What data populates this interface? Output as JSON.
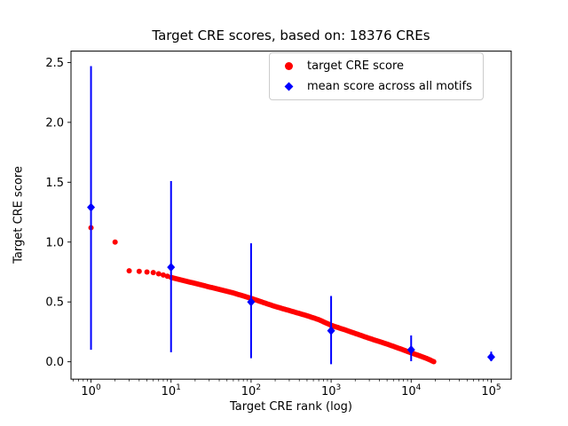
{
  "figure": {
    "background": "#ffffff"
  },
  "chart_data": {
    "type": "scatter",
    "title": "Target CRE scores, based on: 18376 CREs",
    "xlabel": "Target CRE rank (log)",
    "ylabel": "Target CRE score",
    "x_scale": "log",
    "grid": false,
    "x_range_log10": [
      -0.25,
      5.25
    ],
    "y_range": [
      -0.145,
      2.595
    ],
    "x_tick_exponents": [
      0,
      1,
      2,
      3,
      4,
      5
    ],
    "y_ticks": [
      "0.0",
      "0.5",
      "1.0",
      "1.5",
      "2.0",
      "2.5"
    ],
    "legend": {
      "position": "upper right",
      "entries": [
        {
          "label": "target CRE score",
          "marker": "circle",
          "color": "#ff0000"
        },
        {
          "label": "mean score across all motifs",
          "marker": "diamond",
          "color": "#0000ff"
        }
      ]
    },
    "series": [
      {
        "name": "target CRE score",
        "type": "scatter-band",
        "color": "#ff0000",
        "marker": "circle",
        "marker_radius": 3,
        "anchor_points": [
          [
            1,
            1.12
          ],
          [
            2,
            1.0
          ],
          [
            3,
            0.76
          ],
          [
            4,
            0.755
          ],
          [
            5,
            0.75
          ],
          [
            6,
            0.745
          ],
          [
            7,
            0.735
          ],
          [
            8,
            0.725
          ],
          [
            9,
            0.715
          ],
          [
            10,
            0.705
          ],
          [
            13,
            0.685
          ],
          [
            16,
            0.67
          ],
          [
            20,
            0.655
          ],
          [
            30,
            0.625
          ],
          [
            40,
            0.605
          ],
          [
            60,
            0.575
          ],
          [
            80,
            0.55
          ],
          [
            100,
            0.53
          ],
          [
            150,
            0.49
          ],
          [
            200,
            0.462
          ],
          [
            300,
            0.428
          ],
          [
            500,
            0.385
          ],
          [
            700,
            0.352
          ],
          [
            1000,
            0.305
          ],
          [
            1500,
            0.266
          ],
          [
            2000,
            0.237
          ],
          [
            3000,
            0.196
          ],
          [
            5000,
            0.148
          ],
          [
            7000,
            0.113
          ],
          [
            10000,
            0.075
          ],
          [
            13000,
            0.048
          ],
          [
            16000,
            0.025
          ],
          [
            20000,
            -0.005
          ]
        ]
      },
      {
        "name": "mean score across all motifs",
        "type": "errorbar",
        "color": "#0000ff",
        "marker": "diamond",
        "points": [
          {
            "x": 1,
            "y": 1.29,
            "lo": 0.1,
            "hi": 2.47
          },
          {
            "x": 10,
            "y": 0.79,
            "lo": 0.08,
            "hi": 1.51
          },
          {
            "x": 100,
            "y": 0.5,
            "lo": 0.03,
            "hi": 0.99
          },
          {
            "x": 1000,
            "y": 0.26,
            "lo": -0.02,
            "hi": 0.55
          },
          {
            "x": 10000,
            "y": 0.1,
            "lo": 0.005,
            "hi": 0.22
          },
          {
            "x": 100000,
            "y": 0.04,
            "lo": 0.005,
            "hi": 0.085
          }
        ]
      }
    ]
  }
}
